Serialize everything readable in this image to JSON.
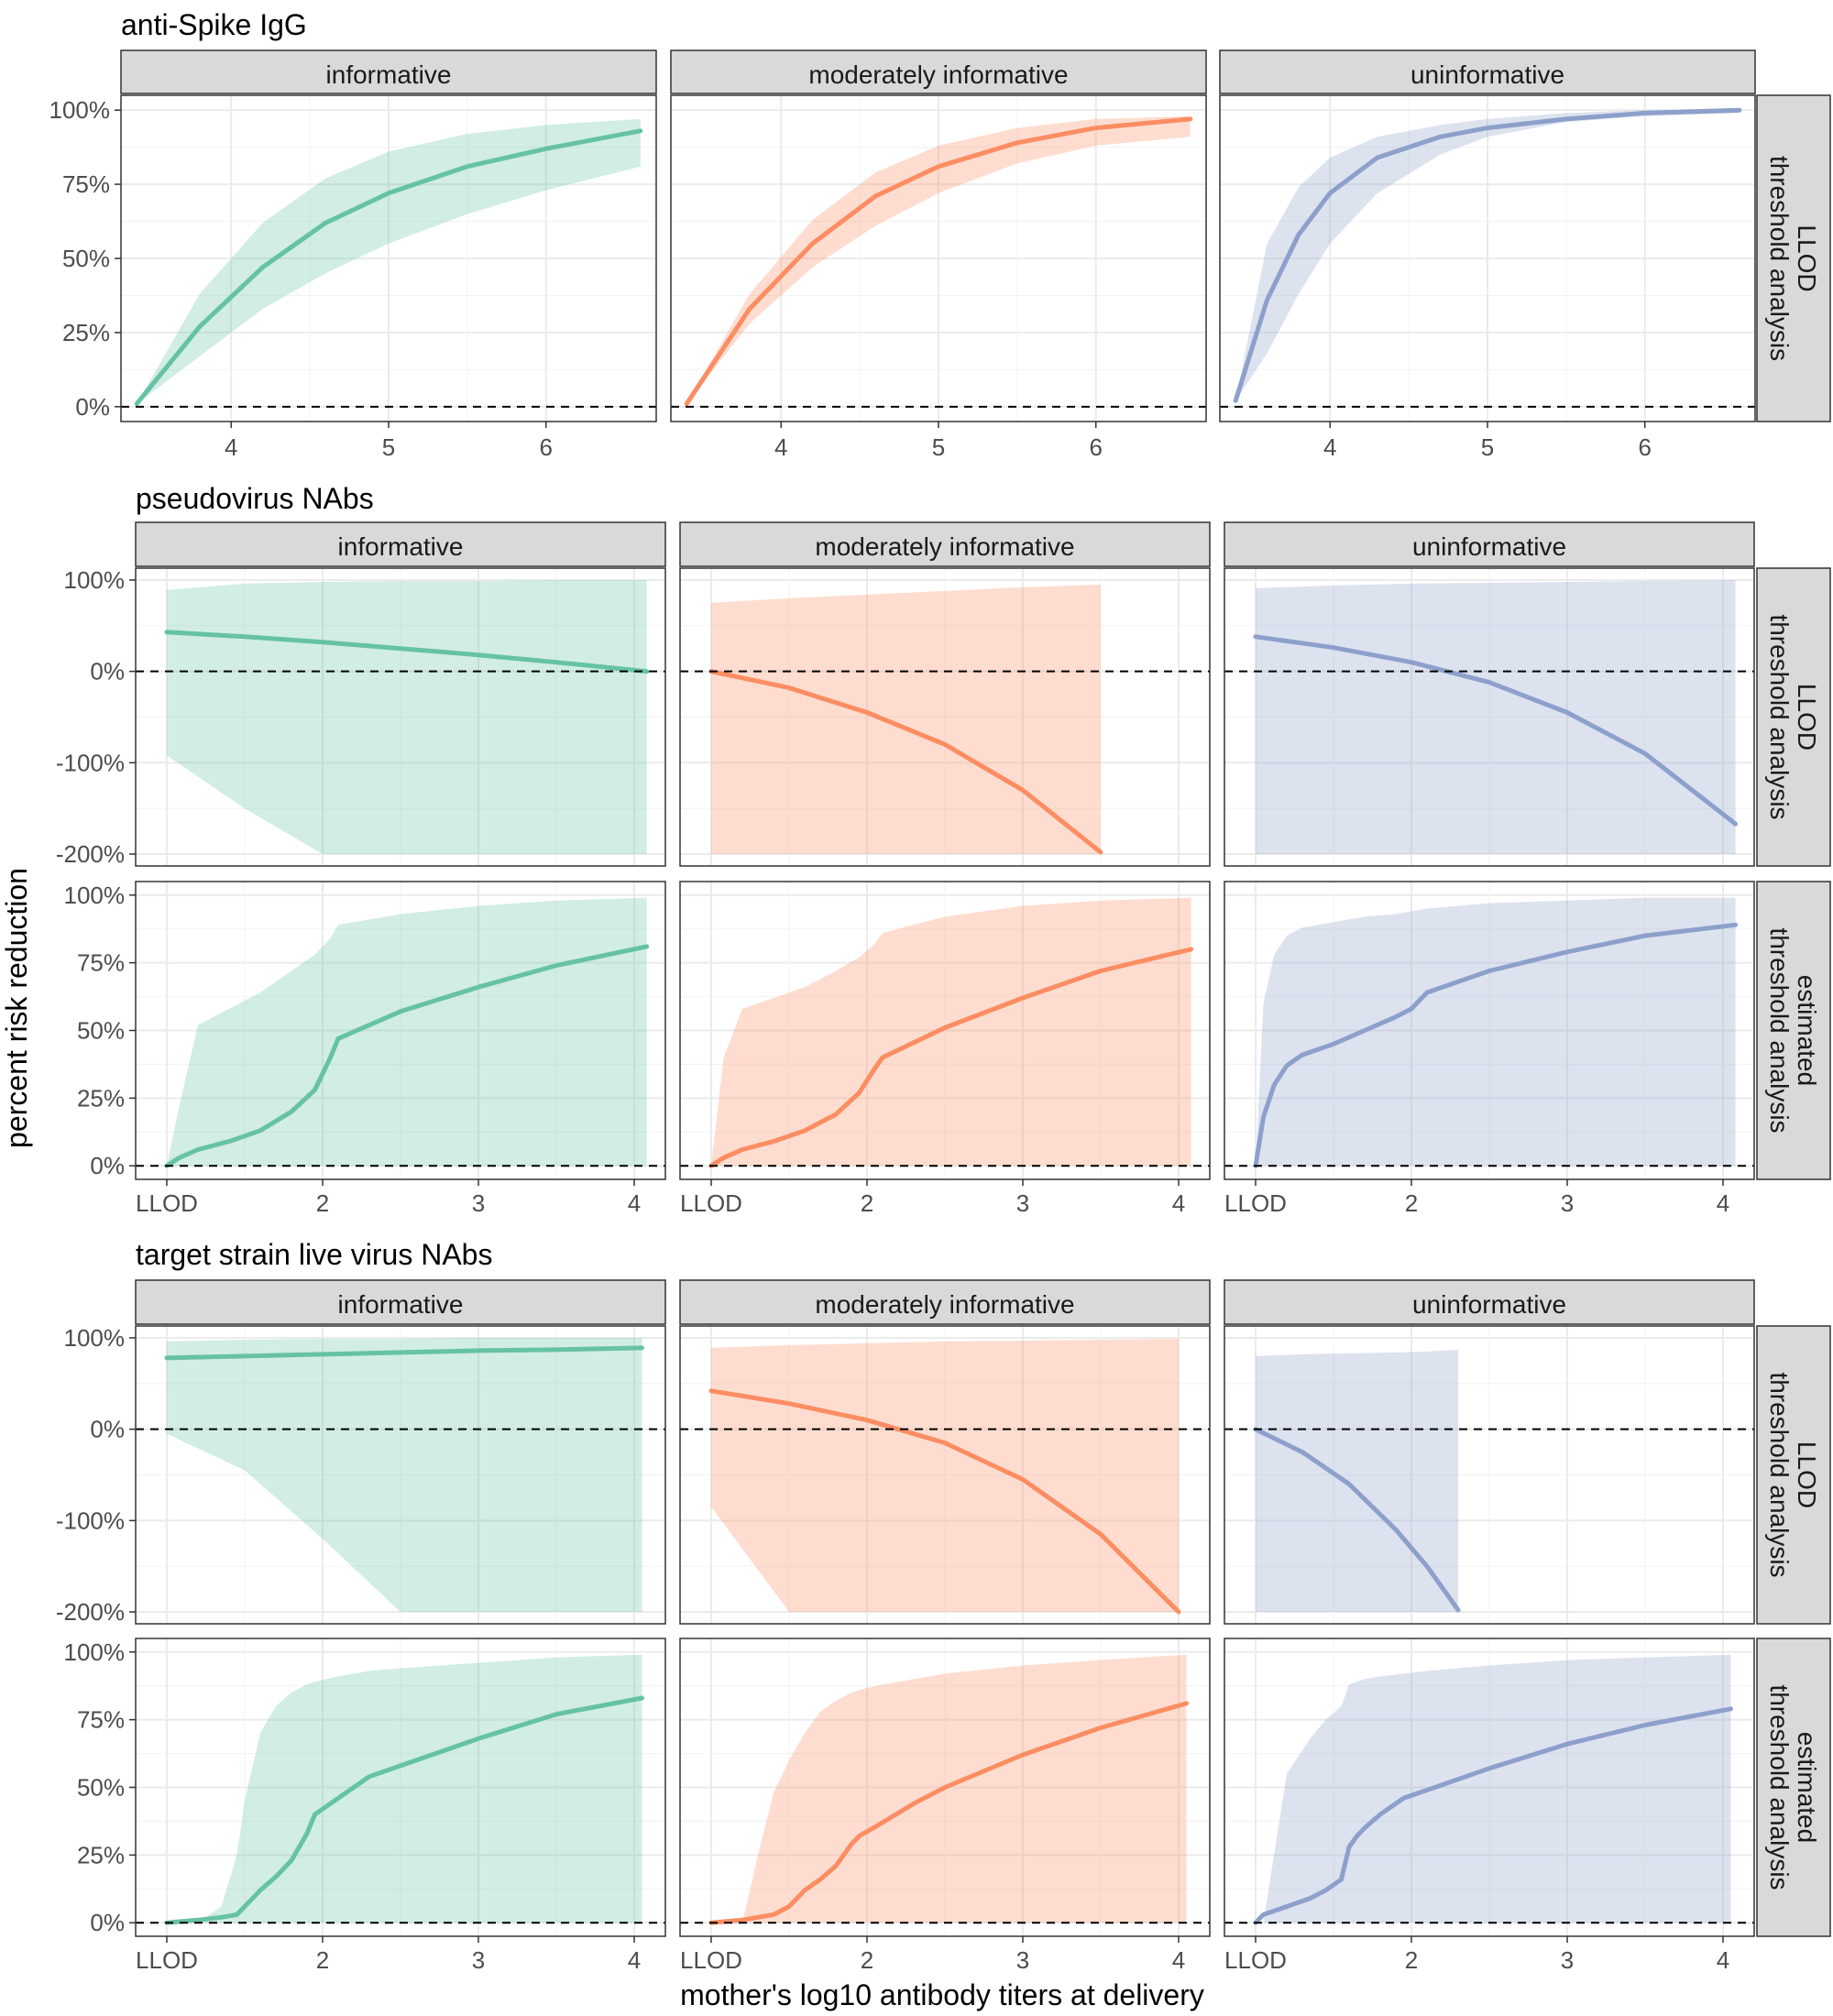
{
  "figure": {
    "ylabel": "percent risk reduction",
    "xlabel": "mother's log10 antibody titers at delivery"
  },
  "colors": {
    "informative": "#66c2a5",
    "moderately informative": "#fc8d62",
    "uninformative": "#8da0cb",
    "strip_bg": "#d9d9d9",
    "panel_border": "#333333",
    "grid": "#ebebeb",
    "ref_line": "#000000"
  },
  "chart_data": [
    {
      "type": "line",
      "section_title": "anti-Spike IgG",
      "row_strips": [
        "LLOD\nthreshold analysis"
      ],
      "columns": [
        "informative",
        "moderately informative",
        "uninformative"
      ],
      "xlim": [
        3.3,
        6.7
      ],
      "x_ticks": [
        {
          "v": 4,
          "label": "4"
        },
        {
          "v": 5,
          "label": "5"
        },
        {
          "v": 6,
          "label": "6"
        }
      ],
      "y_ticks_rows": [
        [
          {
            "v": 0,
            "label": "0%"
          },
          {
            "v": 25,
            "label": "25%"
          },
          {
            "v": 50,
            "label": "50%"
          },
          {
            "v": 75,
            "label": "75%"
          },
          {
            "v": 100,
            "label": "100%"
          }
        ]
      ],
      "ylim_rows": [
        [
          -5,
          105
        ]
      ],
      "reference_line_y": 0,
      "cells": [
        [
          {
            "series": "informative",
            "x": [
              3.4,
              3.8,
              4.2,
              4.6,
              5.0,
              5.5,
              6.0,
              6.6
            ],
            "y": [
              1,
              27,
              47,
              62,
              72,
              81,
              87,
              93
            ],
            "lower": [
              1,
              17,
              33,
              45,
              55,
              65,
              73,
              81
            ],
            "upper": [
              1,
              38,
              62,
              77,
              86,
              92,
              95,
              97
            ]
          }
        ],
        [
          {
            "series": "moderately informative",
            "x": [
              3.4,
              3.8,
              4.2,
              4.6,
              5.0,
              5.5,
              6.0,
              6.6
            ],
            "y": [
              1,
              33,
              55,
              71,
              81,
              89,
              94,
              97
            ],
            "lower": [
              1,
              28,
              47,
              61,
              72,
              82,
              88,
              91
            ],
            "upper": [
              1,
              38,
              63,
              79,
              88,
              94,
              97,
              98
            ]
          }
        ],
        [
          {
            "series": "uninformative",
            "x": [
              3.4,
              3.6,
              3.8,
              4.0,
              4.3,
              4.7,
              5.0,
              5.5,
              6.0,
              6.6
            ],
            "y": [
              2,
              36,
              58,
              72,
              84,
              91,
              94,
              97,
              99,
              100
            ],
            "lower": [
              2,
              18,
              38,
              55,
              72,
              85,
              91,
              96,
              98,
              99
            ],
            "upper": [
              2,
              55,
              74,
              84,
              91,
              95,
              97,
              99,
              100,
              100
            ]
          }
        ]
      ]
    },
    {
      "type": "line",
      "section_title": "pseudovirus NAbs",
      "row_strips": [
        "LLOD\nthreshold analysis",
        "estimated\nthreshold analysis"
      ],
      "columns": [
        "informative",
        "moderately informative",
        "uninformative"
      ],
      "xlim": [
        0.8,
        4.2
      ],
      "x_ticks": [
        {
          "v": 1,
          "label": "LLOD"
        },
        {
          "v": 2,
          "label": "2"
        },
        {
          "v": 3,
          "label": "3"
        },
        {
          "v": 4,
          "label": "4"
        }
      ],
      "y_ticks_rows": [
        [
          {
            "v": -200,
            "label": "-200%"
          },
          {
            "v": -100,
            "label": "-100%"
          },
          {
            "v": 0,
            "label": "0%"
          },
          {
            "v": 100,
            "label": "100%"
          }
        ],
        [
          {
            "v": 0,
            "label": "0%"
          },
          {
            "v": 25,
            "label": "25%"
          },
          {
            "v": 50,
            "label": "50%"
          },
          {
            "v": 75,
            "label": "75%"
          },
          {
            "v": 100,
            "label": "100%"
          }
        ]
      ],
      "ylim_rows": [
        [
          -213,
          113
        ],
        [
          -5,
          105
        ]
      ],
      "reference_line_y": 0,
      "cells": [
        [
          {
            "series": "informative",
            "x": [
              1.0,
              1.5,
              2.0,
              2.5,
              3.0,
              3.5,
              4.08
            ],
            "y": [
              43,
              38,
              32,
              25,
              18,
              10,
              0
            ],
            "lower": [
              -92,
              -150,
              -200,
              -200,
              -200,
              -200,
              -200
            ],
            "upper": [
              89,
              96,
              98,
              99,
              99,
              100,
              100
            ]
          },
          {
            "series": "informative",
            "x": [
              1.0,
              1.08,
              1.2,
              1.4,
              1.6,
              1.8,
              1.95,
              2.05,
              2.1,
              2.5,
              3.0,
              3.5,
              4.08
            ],
            "y": [
              0,
              3,
              6,
              9,
              13,
              20,
              28,
              40,
              47,
              57,
              66,
              74,
              81
            ],
            "lower": [
              0,
              0,
              0,
              0,
              0,
              0,
              0,
              0,
              0,
              0,
              0,
              0,
              0
            ],
            "upper": [
              0,
              22,
              52,
              58,
              64,
              72,
              78,
              84,
              89,
              93,
              96,
              98,
              99
            ]
          }
        ],
        [
          {
            "series": "moderately informative",
            "x": [
              1.0,
              1.5,
              2.0,
              2.5,
              3.0,
              3.5
            ],
            "y": [
              0,
              -18,
              -45,
              -80,
              -130,
              -198
            ],
            "lower": [
              -200,
              -200,
              -200,
              -200,
              -200,
              -200
            ],
            "upper": [
              75,
              80,
              84,
              88,
              92,
              95
            ]
          },
          {
            "series": "moderately informative",
            "x": [
              1.0,
              1.08,
              1.2,
              1.4,
              1.6,
              1.8,
              1.95,
              2.05,
              2.1,
              2.5,
              3.0,
              3.5,
              4.08
            ],
            "y": [
              0,
              3,
              6,
              9,
              13,
              19,
              27,
              36,
              40,
              51,
              62,
              72,
              80
            ],
            "lower": [
              0,
              0,
              0,
              0,
              0,
              0,
              0,
              0,
              0,
              0,
              0,
              0,
              0
            ],
            "upper": [
              0,
              40,
              58,
              62,
              66,
              72,
              77,
              82,
              86,
              92,
              96,
              98,
              99
            ]
          }
        ],
        [
          {
            "series": "uninformative",
            "x": [
              1.0,
              1.5,
              2.0,
              2.5,
              3.0,
              3.5,
              4.08
            ],
            "y": [
              38,
              26,
              10,
              -12,
              -45,
              -90,
              -167
            ],
            "lower": [
              -200,
              -200,
              -200,
              -200,
              -200,
              -200,
              -200
            ],
            "upper": [
              91,
              94,
              96,
              97,
              98,
              99,
              100
            ]
          },
          {
            "series": "uninformative",
            "x": [
              1.0,
              1.05,
              1.12,
              1.2,
              1.3,
              1.5,
              1.7,
              1.9,
              2.0,
              2.1,
              2.5,
              3.0,
              3.5,
              4.08
            ],
            "y": [
              0,
              18,
              30,
              37,
              41,
              45,
              50,
              55,
              58,
              64,
              72,
              79,
              85,
              89
            ],
            "lower": [
              0,
              0,
              0,
              0,
              0,
              0,
              0,
              0,
              0,
              0,
              0,
              0,
              0,
              0
            ],
            "upper": [
              0,
              60,
              78,
              85,
              88,
              90,
              92,
              93,
              94,
              95,
              97,
              98,
              99,
              99
            ]
          }
        ]
      ]
    },
    {
      "type": "line",
      "section_title": "target strain live virus NAbs",
      "row_strips": [
        "LLOD\nthreshold analysis",
        "estimated\nthreshold analysis"
      ],
      "columns": [
        "informative",
        "moderately informative",
        "uninformative"
      ],
      "xlim": [
        0.8,
        4.2
      ],
      "x_ticks": [
        {
          "v": 1,
          "label": "LLOD"
        },
        {
          "v": 2,
          "label": "2"
        },
        {
          "v": 3,
          "label": "3"
        },
        {
          "v": 4,
          "label": "4"
        }
      ],
      "y_ticks_rows": [
        [
          {
            "v": -200,
            "label": "-200%"
          },
          {
            "v": -100,
            "label": "-100%"
          },
          {
            "v": 0,
            "label": "0%"
          },
          {
            "v": 100,
            "label": "100%"
          }
        ],
        [
          {
            "v": 0,
            "label": "0%"
          },
          {
            "v": 25,
            "label": "25%"
          },
          {
            "v": 50,
            "label": "50%"
          },
          {
            "v": 75,
            "label": "75%"
          },
          {
            "v": 100,
            "label": "100%"
          }
        ]
      ],
      "ylim_rows": [
        [
          -213,
          113
        ],
        [
          -5,
          105
        ]
      ],
      "reference_line_y": 0,
      "cells": [
        [
          {
            "series": "informative",
            "x": [
              1.0,
              1.5,
              2.0,
              2.5,
              3.0,
              3.5,
              4.05
            ],
            "y": [
              78,
              80,
              82,
              84,
              86,
              87,
              89
            ],
            "lower": [
              -5,
              -45,
              -120,
              -200,
              -200,
              -200,
              -200
            ],
            "upper": [
              96,
              98,
              99,
              99,
              100,
              100,
              100
            ]
          },
          {
            "series": "informative",
            "x": [
              1.0,
              1.2,
              1.35,
              1.45,
              1.5,
              1.6,
              1.7,
              1.8,
              1.9,
              1.95,
              2.1,
              2.3,
              2.5,
              3.0,
              3.5,
              4.05
            ],
            "y": [
              0,
              1,
              2,
              3,
              6,
              12,
              17,
              23,
              33,
              40,
              46,
              54,
              58,
              68,
              77,
              83
            ],
            "lower": [
              0,
              0,
              0,
              0,
              0,
              0,
              0,
              0,
              0,
              0,
              0,
              0,
              0,
              0,
              0,
              0
            ],
            "upper": [
              0,
              0,
              6,
              25,
              45,
              70,
              80,
              85,
              88,
              89,
              91,
              93,
              94,
              96,
              98,
              99
            ]
          }
        ],
        [
          {
            "series": "moderately informative",
            "x": [
              1.0,
              1.5,
              2.0,
              2.5,
              3.0,
              3.5,
              4.0
            ],
            "y": [
              42,
              28,
              10,
              -15,
              -55,
              -115,
              -200
            ],
            "lower": [
              -85,
              -200,
              -200,
              -200,
              -200,
              -200,
              -200
            ],
            "upper": [
              89,
              92,
              94,
              96,
              97,
              98,
              99
            ]
          },
          {
            "series": "moderately informative",
            "x": [
              1.0,
              1.2,
              1.3,
              1.4,
              1.5,
              1.6,
              1.7,
              1.8,
              1.9,
              1.95,
              2.1,
              2.3,
              2.5,
              3.0,
              3.5,
              4.05
            ],
            "y": [
              0,
              1,
              2,
              3,
              6,
              12,
              16,
              21,
              29,
              32,
              37,
              44,
              50,
              62,
              72,
              81
            ],
            "lower": [
              0,
              0,
              0,
              0,
              0,
              0,
              0,
              0,
              0,
              0,
              0,
              0,
              0,
              0,
              0,
              0
            ],
            "upper": [
              0,
              0,
              25,
              48,
              60,
              70,
              78,
              82,
              85,
              86,
              88,
              90,
              92,
              95,
              97,
              99
            ]
          }
        ],
        [
          {
            "series": "uninformative",
            "x": [
              1.0,
              1.3,
              1.6,
              1.9,
              2.1,
              2.3
            ],
            "y": [
              0,
              -25,
              -60,
              -110,
              -150,
              -198
            ],
            "lower": [
              -200,
              -200,
              -200,
              -200,
              -200,
              -200
            ],
            "upper": [
              80,
              82,
              83,
              84,
              85,
              87
            ]
          },
          {
            "series": "uninformative",
            "x": [
              1.0,
              1.05,
              1.2,
              1.35,
              1.45,
              1.55,
              1.6,
              1.65,
              1.7,
              1.8,
              1.95,
              2.1,
              2.5,
              3.0,
              3.5,
              4.05
            ],
            "y": [
              0,
              3,
              6,
              9,
              12,
              16,
              28,
              32,
              35,
              40,
              46,
              49,
              57,
              66,
              73,
              79
            ],
            "lower": [
              0,
              0,
              0,
              0,
              0,
              0,
              0,
              0,
              0,
              0,
              0,
              0,
              0,
              0,
              0,
              0
            ],
            "upper": [
              0,
              0,
              55,
              68,
              75,
              80,
              88,
              89,
              90,
              91,
              92,
              93,
              95,
              97,
              98,
              99
            ]
          }
        ]
      ]
    }
  ]
}
